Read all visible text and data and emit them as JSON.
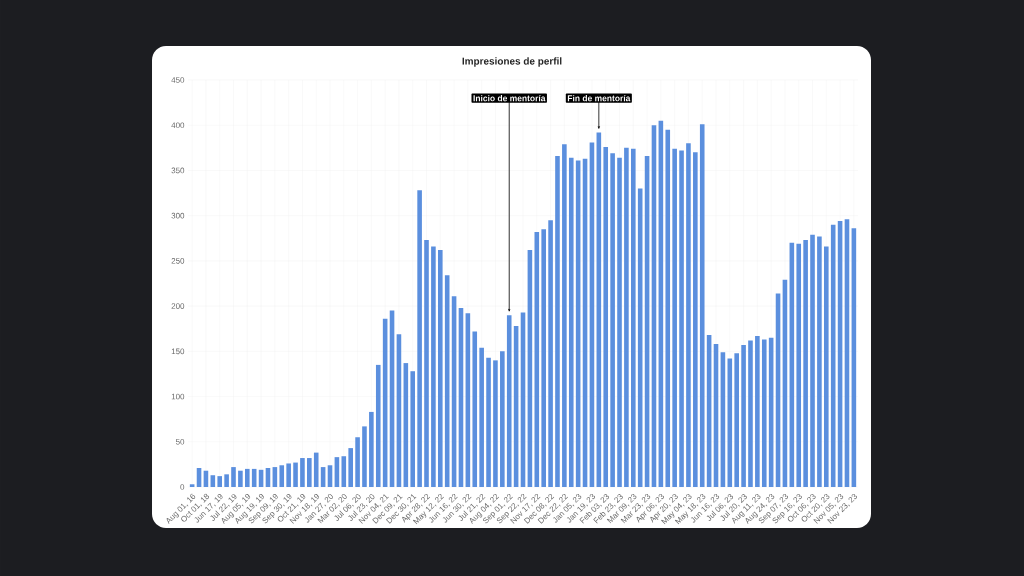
{
  "chart_data": {
    "type": "bar",
    "title": "Impresiones de perfil",
    "categories": [
      "Aug 01, 16",
      null,
      "Oct 01, 18",
      null,
      "Jun 17, 19",
      null,
      "Jul 22, 19",
      null,
      "Aug 05, 19",
      null,
      "Aug 19, 19",
      null,
      "Sep 09, 19",
      null,
      "Sep 30, 19",
      null,
      "Oct 21, 19",
      null,
      "Nov 18, 19",
      null,
      "Jan 27, 20",
      null,
      "Mar 02, 20",
      null,
      "Jul 06, 20",
      null,
      "Jul 23, 20",
      null,
      "Nov 04, 21",
      null,
      "Dec 09, 21",
      null,
      "Dec 30, 21",
      null,
      "Apr 28, 22",
      null,
      "May 12, 22",
      null,
      "Jun 16, 22",
      null,
      "Jun 30, 22",
      null,
      "Jul 21, 22",
      null,
      "Aug 04, 22",
      null,
      "Sep 01, 22",
      null,
      "Sep 22, 22",
      null,
      "Nov 17, 22",
      null,
      "Dec 08, 22",
      null,
      "Dec 22, 22",
      null,
      "Jan 05, 23",
      null,
      "Jan 19, 23",
      null,
      "Feb 03, 23",
      null,
      "Feb 23, 23",
      null,
      "Mar 09, 23",
      null,
      "Mar 23, 23",
      null,
      "Apr 06, 23",
      null,
      "Apr 20, 23",
      null,
      "May 04, 23",
      null,
      "May 18, 23",
      null,
      "Jun 16, 23",
      null,
      "Jul 06, 23",
      null,
      "Jul 20, 23",
      null,
      "Aug 11, 23",
      null,
      "Aug 24, 23",
      null,
      "Sep 07, 23",
      null,
      "Sep 16, 23",
      null,
      "Oct 06, 23",
      null,
      "Oct 20, 23",
      null,
      "Nov 05, 23",
      null,
      "Nov 23, 23"
    ],
    "values": [
      3,
      21,
      18,
      13,
      12,
      14,
      22,
      18,
      20,
      20,
      19,
      21,
      22,
      24,
      26,
      27,
      32,
      32,
      38,
      22,
      24,
      33,
      34,
      43,
      55,
      67,
      83,
      135,
      186,
      195,
      169,
      137,
      128,
      328,
      273,
      266,
      262,
      234,
      211,
      198,
      192,
      172,
      154,
      143,
      140,
      150,
      190,
      178,
      193,
      262,
      282,
      285,
      295,
      366,
      379,
      364,
      361,
      363,
      381,
      392,
      376,
      369,
      364,
      375,
      374,
      330,
      366,
      400,
      405,
      395,
      374,
      372,
      380,
      370,
      401,
      168,
      158,
      149,
      142,
      148,
      157,
      162,
      167,
      163,
      165,
      214,
      229,
      270,
      269,
      273,
      279,
      277,
      266,
      290,
      294,
      296,
      286
    ],
    "color": "#5b8fde",
    "ylim": [
      0,
      450
    ],
    "yticks": [
      0,
      50,
      100,
      150,
      200,
      250,
      300,
      350,
      400,
      450
    ],
    "grid": true,
    "annotations": [
      {
        "text": "Inicio de mentoría",
        "y": 190
      },
      {
        "text": "Fin de mentoría",
        "y": 392
      }
    ]
  }
}
